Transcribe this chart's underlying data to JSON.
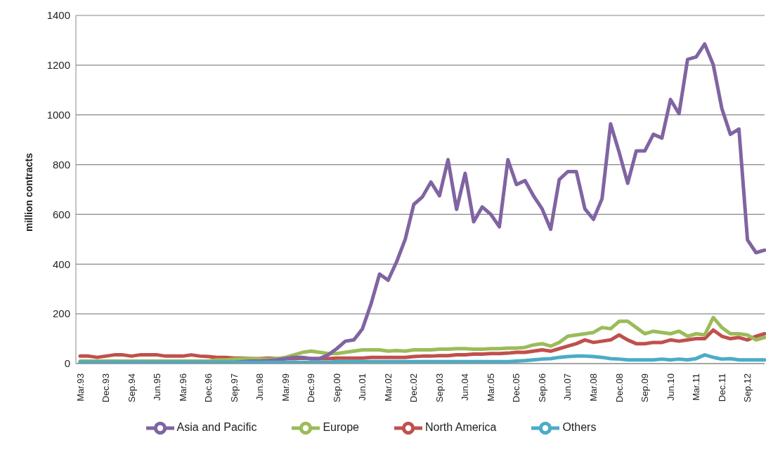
{
  "chart_data": {
    "type": "line",
    "ylabel": "million contracts",
    "ylim": [
      0,
      1400
    ],
    "yticks": [
      0,
      200,
      400,
      600,
      800,
      1000,
      1200,
      1400
    ],
    "grid": "y",
    "legend": "bottom",
    "marker": "none",
    "line_style": "solid",
    "categories": [
      "Mar.93",
      null,
      null,
      "Dec.93",
      null,
      null,
      "Sep.94",
      null,
      null,
      "Jun.95",
      null,
      null,
      "Mar.96",
      null,
      null,
      "Dec.96",
      null,
      null,
      "Sep.97",
      null,
      null,
      "Jun.98",
      null,
      null,
      "Mar.99",
      null,
      null,
      "Dec.99",
      null,
      null,
      "Sep.00",
      null,
      null,
      "Jun.01",
      null,
      null,
      "Mar.02",
      null,
      null,
      "Dec.02",
      null,
      null,
      "Sep.03",
      null,
      null,
      "Jun.04",
      null,
      null,
      "Mar.05",
      null,
      null,
      "Dec.05",
      null,
      null,
      "Sep.06",
      null,
      null,
      "Jun.07",
      null,
      null,
      "Mar.08",
      null,
      null,
      "Dec.08",
      null,
      null,
      "Sep.09",
      null,
      null,
      "Jun.10",
      null,
      null,
      "Mar.11",
      null,
      null,
      "Dec.11",
      null,
      null,
      "Sep.12",
      null,
      null
    ],
    "series": [
      {
        "name": "North America",
        "color": "#c0504d",
        "values": [
          30,
          30,
          25,
          30,
          35,
          35,
          30,
          35,
          35,
          35,
          30,
          30,
          30,
          35,
          30,
          28,
          25,
          25,
          22,
          22,
          20,
          20,
          22,
          20,
          20,
          20,
          22,
          20,
          20,
          20,
          22,
          22,
          22,
          22,
          25,
          25,
          25,
          25,
          25,
          28,
          30,
          30,
          32,
          32,
          35,
          35,
          38,
          38,
          40,
          40,
          42,
          45,
          45,
          50,
          55,
          50,
          60,
          70,
          80,
          95,
          85,
          90,
          95,
          115,
          95,
          80,
          80,
          85,
          85,
          95,
          90,
          95,
          100,
          100,
          135,
          110,
          100,
          105,
          95,
          110,
          120
        ]
      },
      {
        "name": "Europe",
        "color": "#9bbb59",
        "values": [
          10,
          10,
          10,
          10,
          10,
          10,
          10,
          10,
          10,
          10,
          10,
          10,
          10,
          10,
          10,
          10,
          15,
          15,
          18,
          20,
          20,
          18,
          18,
          20,
          25,
          35,
          45,
          50,
          45,
          40,
          40,
          45,
          50,
          55,
          55,
          55,
          50,
          52,
          50,
          55,
          55,
          55,
          58,
          58,
          60,
          60,
          58,
          58,
          60,
          60,
          62,
          62,
          65,
          75,
          80,
          70,
          85,
          110,
          115,
          120,
          125,
          145,
          140,
          170,
          170,
          145,
          120,
          130,
          125,
          120,
          130,
          110,
          120,
          115,
          185,
          145,
          120,
          120,
          115,
          95,
          105
        ]
      },
      {
        "name": "Asia and Pacific",
        "color": "#8064a2",
        "values": [
          5,
          5,
          5,
          5,
          5,
          5,
          5,
          5,
          5,
          5,
          5,
          5,
          5,
          5,
          5,
          5,
          5,
          5,
          5,
          8,
          10,
          10,
          12,
          15,
          20,
          25,
          25,
          20,
          20,
          35,
          60,
          90,
          95,
          140,
          240,
          360,
          335,
          410,
          500,
          640,
          670,
          730,
          675,
          820,
          620,
          765,
          570,
          630,
          600,
          550,
          820,
          720,
          736,
          674,
          622,
          540,
          740,
          772,
          772,
          622,
          580,
          663,
          964,
          850,
          725,
          855,
          855,
          922,
          907,
          1062,
          1005,
          1223,
          1233,
          1285,
          1202,
          1026,
          922,
          943,
          497,
          446,
          456
        ]
      },
      {
        "name": "Others",
        "color": "#4bacc6",
        "values": [
          5,
          5,
          5,
          5,
          5,
          5,
          5,
          5,
          5,
          5,
          5,
          5,
          5,
          5,
          5,
          5,
          5,
          5,
          5,
          5,
          5,
          5,
          5,
          5,
          5,
          5,
          5,
          5,
          5,
          5,
          8,
          8,
          8,
          8,
          8,
          8,
          8,
          8,
          8,
          8,
          8,
          8,
          8,
          8,
          8,
          8,
          8,
          8,
          8,
          8,
          8,
          10,
          12,
          15,
          18,
          20,
          25,
          28,
          30,
          30,
          28,
          25,
          20,
          18,
          15,
          15,
          15,
          15,
          18,
          15,
          18,
          15,
          20,
          35,
          25,
          18,
          20,
          15,
          15,
          15,
          15
        ]
      }
    ]
  }
}
